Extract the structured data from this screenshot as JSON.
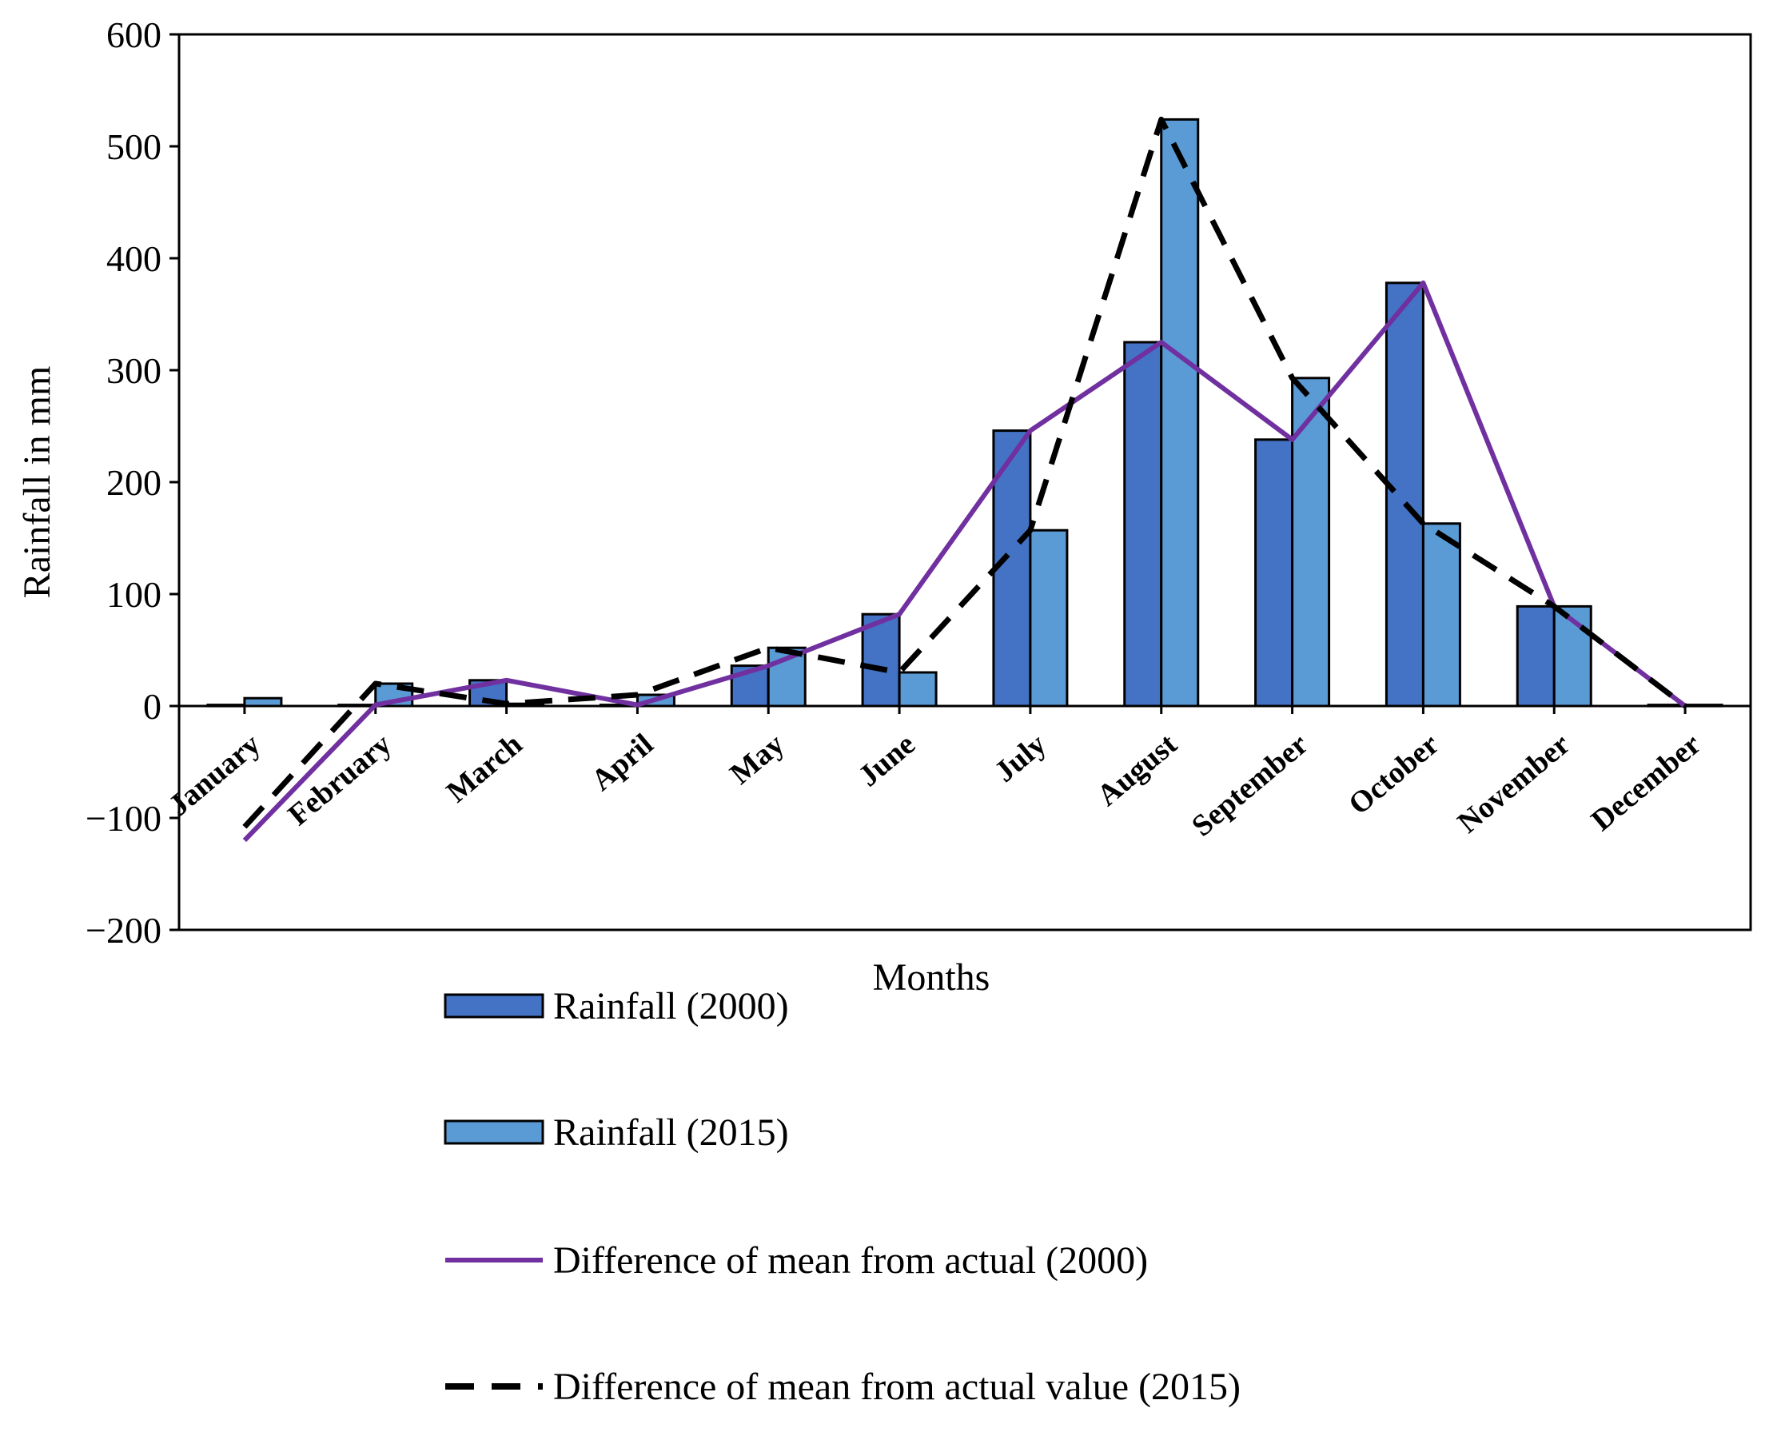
{
  "chart_data": {
    "type": "bar",
    "title": "",
    "xlabel": "Months",
    "ylabel": "Rainfall in mm",
    "ylim": [
      -200,
      600
    ],
    "yticks": [
      600,
      500,
      400,
      300,
      200,
      100,
      0,
      -100,
      -200
    ],
    "ytick_labels": [
      "600",
      "500",
      "400",
      "300",
      "200",
      "100",
      "0",
      "−100",
      "−200"
    ],
    "grid": false,
    "legend_position": "bottom",
    "categories": [
      "January",
      "February",
      "March",
      "April",
      "May",
      "June",
      "July",
      "August",
      "September",
      "October",
      "November",
      "December"
    ],
    "series": [
      {
        "name": "Rainfall (2000)",
        "kind": "bar",
        "color": "#4472C4",
        "values": [
          1,
          1,
          23,
          1,
          36,
          82,
          246,
          325,
          238,
          378,
          89,
          1
        ]
      },
      {
        "name": "Rainfall (2015)",
        "kind": "bar",
        "color": "#5B9BD5",
        "values": [
          7,
          20,
          2,
          10,
          52,
          30,
          157,
          524,
          293,
          163,
          89,
          1
        ]
      },
      {
        "name": "Difference of mean from actual (2000)",
        "kind": "line",
        "style": "solid",
        "color": "#7030A0",
        "values": [
          -120,
          1,
          23,
          1,
          36,
          82,
          246,
          325,
          238,
          378,
          89,
          0
        ]
      },
      {
        "name": "Difference of mean from actual value (2015)",
        "kind": "line",
        "style": "dashed",
        "color": "#000000",
        "values": [
          -108,
          20,
          2,
          10,
          52,
          30,
          157,
          524,
          293,
          163,
          89,
          0
        ]
      }
    ]
  }
}
